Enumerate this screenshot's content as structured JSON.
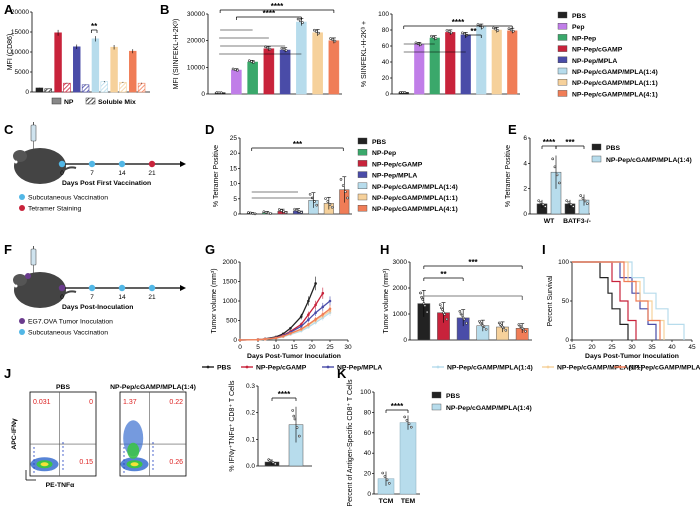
{
  "colors": {
    "PBS": "#222222",
    "Pep": "#c07ee8",
    "NP-Pep": "#3aa86b",
    "NP-Pep/cGAMP": "#c8233b",
    "NP-Pep/MPLA": "#4a4ca8",
    "NP-Pep/cGAMP/MPLA(1:4)": "#b7dcec",
    "NP-Pep/cGAMP/MPLA(1:1)": "#f6d19b",
    "NP-Pep/cGAMP/MPLA(4:1)": "#f07d57"
  },
  "labels": {
    "A": "A",
    "B": "B",
    "C": "C",
    "D": "D",
    "E": "E",
    "F": "F",
    "G": "G",
    "H": "H",
    "I": "I",
    "J": "J",
    "K": "K"
  },
  "chart_data": [
    {
      "id": "A",
      "type": "bar",
      "ylabel": "MFI (CD86)",
      "ylim": [
        0,
        20000
      ],
      "yticks": [
        "0",
        "5000",
        "10000",
        "15000",
        "20000"
      ],
      "groups": [
        "PBS",
        "NP-Pep/cGAMP",
        "NP-Pep/MPLA",
        "NP-Pep/cGAMP/MPLA(1:4)",
        "NP-Pep/cGAMP/MPLA(1:1)",
        "NP-Pep/cGAMP/MPLA(4:1)"
      ],
      "series": [
        {
          "name": "NP",
          "values": [
            1000,
            14800,
            11300,
            13300,
            11200,
            10200
          ]
        },
        {
          "name": "Soluble Mix",
          "values": [
            800,
            2200,
            1800,
            2600,
            2400,
            2200
          ]
        }
      ],
      "legend": [
        "NP",
        "Soluble Mix"
      ],
      "annotations": [
        "**"
      ]
    },
    {
      "id": "B1",
      "type": "bar",
      "ylabel": "MFI (SIINFEKL-H-2Kb)",
      "ylim": [
        0,
        30000
      ],
      "yticks": [
        "0",
        "10000",
        "20000",
        "30000"
      ],
      "categories": [
        "PBS",
        "Pep",
        "NP-Pep",
        "NP-Pep/cGAMP",
        "NP-Pep/MPLA",
        "NP-Pep/cGAMP/MPLA(1:4)",
        "NP-Pep/cGAMP/MPLA(1:1)",
        "NP-Pep/cGAMP/MPLA(4:1)"
      ],
      "values": [
        500,
        9000,
        12000,
        17000,
        16500,
        27000,
        23000,
        20000
      ],
      "annotations": [
        "****",
        "****"
      ]
    },
    {
      "id": "B2",
      "type": "bar",
      "ylabel": "% SIINFEKL-H-2Kb +",
      "ylim": [
        0,
        100
      ],
      "yticks": [
        "0",
        "20",
        "40",
        "60",
        "80",
        "100"
      ],
      "categories": [
        "PBS",
        "Pep",
        "NP-Pep",
        "NP-Pep/cGAMP",
        "NP-Pep/MPLA",
        "NP-Pep/cGAMP/MPLA(1:4)",
        "NP-Pep/cGAMP/MPLA(1:1)",
        "NP-Pep/cGAMP/MPLA(4:1)"
      ],
      "values": [
        2,
        62,
        70,
        77,
        74,
        84,
        80,
        79
      ],
      "annotations": [
        "****",
        "**"
      ]
    },
    {
      "id": "D",
      "type": "bar",
      "ylabel": "% Tetramer Positive",
      "ylim": [
        0,
        25
      ],
      "yticks": [
        "0",
        "5",
        "10",
        "15",
        "20",
        "25"
      ],
      "categories": [
        "PBS",
        "NP-Pep",
        "NP-Pep/cGAMP",
        "NP-Pep/MPLA",
        "NP-Pep/cGAMP/MPLA(1:4)",
        "NP-Pep/cGAMP/MPLA(1:1)",
        "NP-Pep/cGAMP/MPLA(4:1)"
      ],
      "values": [
        0.2,
        0.4,
        0.9,
        1.0,
        4.5,
        3.5,
        8.0
      ],
      "annotations": [
        "***"
      ]
    },
    {
      "id": "E",
      "type": "bar",
      "ylabel": "% Tetramer Positive",
      "ylim": [
        0,
        6
      ],
      "yticks": [
        "0",
        "2",
        "4",
        "6"
      ],
      "categories": [
        "WT",
        "BATF3-/-"
      ],
      "series": [
        {
          "name": "PBS",
          "values": [
            0.8,
            0.8
          ]
        },
        {
          "name": "NP-Pep/cGAMP/MPLA(1:4)",
          "values": [
            3.3,
            1.1
          ]
        }
      ],
      "annotations": [
        "****",
        "***"
      ]
    },
    {
      "id": "G",
      "type": "line",
      "xlabel": "Days Post-Tumor Inoculation",
      "ylabel": "Tumor volume (mm3)",
      "xlim": [
        0,
        30
      ],
      "ylim": [
        0,
        2000
      ],
      "xticks": [
        "0",
        "5",
        "10",
        "15",
        "20",
        "25",
        "30"
      ],
      "yticks": [
        "0",
        "500",
        "1000",
        "1500",
        "2000"
      ],
      "x": [
        0,
        5,
        7,
        10,
        12,
        14,
        17,
        19,
        21,
        23,
        25
      ],
      "series": [
        {
          "name": "PBS",
          "values": [
            0,
            10,
            30,
            80,
            160,
            300,
            600,
            1000,
            1450,
            null,
            null
          ]
        },
        {
          "name": "NP-Pep/cGAMP",
          "values": [
            0,
            10,
            25,
            60,
            120,
            220,
            400,
            650,
            900,
            1200,
            null
          ]
        },
        {
          "name": "NP-Pep/MPLA",
          "values": [
            0,
            10,
            25,
            55,
            110,
            200,
            350,
            520,
            700,
            850,
            1000
          ]
        },
        {
          "name": "NP-Pep/cGAMP/MPLA(1:4)",
          "values": [
            0,
            8,
            20,
            45,
            80,
            140,
            230,
            330,
            450,
            570,
            700
          ]
        },
        {
          "name": "NP-Pep/cGAMP/MPLA(1:1)",
          "values": [
            0,
            8,
            20,
            50,
            90,
            160,
            260,
            380,
            500,
            620,
            750
          ]
        },
        {
          "name": "NP-Pep/cGAMP/MPLA(4:1)",
          "values": [
            0,
            8,
            22,
            50,
            95,
            170,
            280,
            400,
            530,
            660,
            800
          ]
        }
      ]
    },
    {
      "id": "H",
      "type": "bar",
      "ylabel": "Tumor volume (mm3)",
      "ylim": [
        0,
        3000
      ],
      "yticks": [
        "0",
        "1000",
        "2000",
        "3000"
      ],
      "categories": [
        "PBS",
        "NP-Pep/cGAMP",
        "NP-Pep/MPLA",
        "NP-Pep/cGAMP/MPLA(1:4)",
        "NP-Pep/cGAMP/MPLA(1:1)",
        "NP-Pep/cGAMP/MPLA(4:1)"
      ],
      "values": [
        1400,
        1050,
        850,
        550,
        500,
        450
      ],
      "annotations": [
        "**",
        "***"
      ]
    },
    {
      "id": "I",
      "type": "line",
      "xlabel": "Days Post-Tumor Inoculation",
      "ylabel": "Percent Survival",
      "xlim": [
        15,
        45
      ],
      "ylim": [
        0,
        100
      ],
      "xticks": [
        "15",
        "20",
        "25",
        "30",
        "35",
        "40",
        "45"
      ],
      "yticks": [
        "0",
        "50",
        "100"
      ],
      "series": [
        {
          "name": "PBS",
          "x": [
            15,
            21,
            22,
            24,
            25,
            27,
            29
          ],
          "values": [
            100,
            100,
            80,
            60,
            40,
            20,
            0
          ]
        },
        {
          "name": "NP-Pep/cGAMP",
          "x": [
            15,
            23,
            25,
            27,
            29,
            31
          ],
          "values": [
            100,
            100,
            75,
            50,
            25,
            0
          ]
        },
        {
          "name": "NP-Pep/MPLA",
          "x": [
            15,
            25,
            27,
            30,
            32,
            34,
            36
          ],
          "values": [
            100,
            100,
            80,
            60,
            40,
            20,
            0
          ]
        },
        {
          "name": "NP-Pep/cGAMP/MPLA(1:4)",
          "x": [
            15,
            27,
            30,
            33,
            36,
            39,
            43
          ],
          "values": [
            100,
            100,
            80,
            60,
            40,
            20,
            0
          ]
        },
        {
          "name": "NP-Pep/cGAMP/MPLA(1:1)",
          "x": [
            15,
            26,
            29,
            32,
            35,
            38
          ],
          "values": [
            100,
            100,
            75,
            50,
            25,
            0
          ]
        },
        {
          "name": "NP-Pep/cGAMP/MPLA(4:1)",
          "x": [
            15,
            25,
            28,
            31,
            34,
            37
          ],
          "values": [
            100,
            100,
            75,
            50,
            25,
            0
          ]
        }
      ]
    },
    {
      "id": "J",
      "type": "bar",
      "ylabel": "% IFNγ+TNFα+ CD8+ T Cells",
      "ylim": [
        0,
        0.3
      ],
      "yticks": [
        "0.0",
        "0.1",
        "0.2",
        "0.3"
      ],
      "categories": [
        "PBS",
        "NP-Pep/cGAMP/MPLA(1:4)"
      ],
      "values": [
        0.015,
        0.155
      ],
      "annotations": [
        "****"
      ],
      "flow": {
        "titles": [
          "PBS",
          "NP-Pep/cGAMP/MPLA(1:4)"
        ],
        "quadrants": [
          [
            "0.031",
            "0",
            "0.15"
          ],
          [
            "1.37",
            "0.22",
            "0.26"
          ]
        ],
        "xlabel": "PE-TNFα",
        "ylabel": "APC-IFNγ"
      }
    },
    {
      "id": "K",
      "type": "bar",
      "ylabel": "Percent of Antigen-Specific CD8+ T Cells",
      "ylim": [
        0,
        100
      ],
      "yticks": [
        "0",
        "20",
        "40",
        "60",
        "80",
        "100"
      ],
      "categories": [
        "TCM",
        "TEM"
      ],
      "values": [
        15,
        70
      ],
      "legend": [
        "PBS",
        "NP-Pep/cGAMP/MPLA(1:4)"
      ],
      "annotations": [
        "****"
      ]
    }
  ],
  "schematic_C": {
    "days": [
      "0",
      "7",
      "14",
      "21"
    ],
    "xlabel": "Days Post First Vaccination",
    "legend": [
      "Subcutaneous Vaccination",
      "Tetramer Staining"
    ]
  },
  "schematic_F": {
    "days": [
      "0",
      "7",
      "14",
      "21"
    ],
    "xlabel": "Days Post-Inoculation",
    "legend": [
      "EG7.OVA Tumor Inoculation",
      "Subcutaneous Vaccination"
    ]
  },
  "legend_B": [
    "PBS",
    "Pep",
    "NP-Pep",
    "NP-Pep/cGAMP",
    "NP-Pep/MPLA",
    "NP-Pep/cGAMP/MPLA(1:4)",
    "NP-Pep/cGAMP/MPLA(1:1)",
    "NP-Pep/cGAMP/MPLA(4:1)"
  ],
  "legend_D": [
    "PBS",
    "NP-Pep",
    "NP-Pep/cGAMP",
    "NP-Pep/MPLA",
    "NP-Pep/cGAMP/MPLA(1:4)",
    "NP-Pep/cGAMP/MPLA(1:1)",
    "NP-Pep/cGAMP/MPLA(4:1)"
  ],
  "legend_E": [
    "PBS",
    "NP-Pep/cGAMP/MPLA(1:4)"
  ],
  "legend_G": [
    "PBS",
    "NP-Pep/cGAMP",
    "NP-Pep/MPLA",
    "NP-Pep/cGAMP/MPLA(1:4)",
    "NP-Pep/cGAMP/MPLA(1:1)",
    "NP-Pep/cGAMP/MPLA(4:1)"
  ]
}
